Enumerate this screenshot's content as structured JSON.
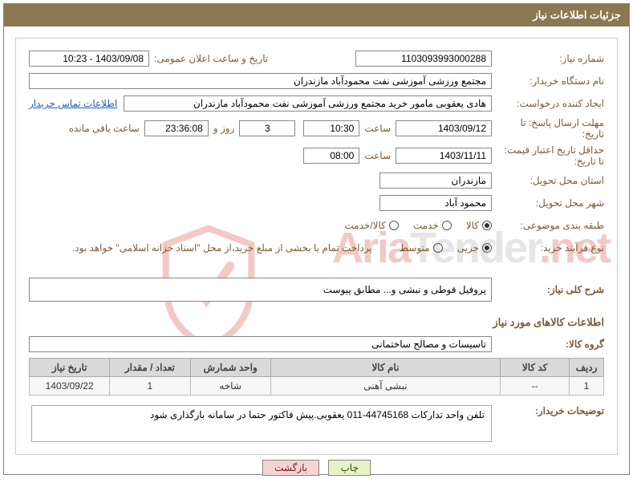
{
  "header_title": "جزئیات اطلاعات نیاز",
  "labels": {
    "need_no": "شماره نیاز:",
    "publish_dt": "تاریخ و ساعت اعلان عمومی:",
    "buyer_org": "نام دستگاه خریدار:",
    "requester": "ایجاد کننده درخواست:",
    "deadline": "مهلت ارسال پاسخ: تا تاریخ:",
    "validity": "حداقل تاریخ اعتبار قیمت: تا تاریخ:",
    "hour": "ساعت",
    "days_and": "روز و",
    "remaining": "ساعت باقی مانده",
    "delivery_prov": "استان محل تحویل:",
    "delivery_city": "شهر محل تحویل:",
    "subject_cat": "طبقه بندی موضوعی:",
    "process_type": "نوع فرآیند خرید:",
    "contact_link": "اطلاعات تماس خریدار",
    "process_note": "پرداخت تمام یا بخشی از مبلغ خرید،از محل \"اسناد خزانه اسلامی\" خواهد بود.",
    "main_desc": "شرح کلی نیاز:",
    "goods_info": "اطلاعات کالاهای مورد نیاز",
    "goods_group": "گروه کالا:",
    "buyer_notes": "توضیحات خریدار:"
  },
  "values": {
    "need_no": "1103093993000288",
    "publish_dt": "1403/09/08 - 10:23",
    "buyer_org": "مجتمع ورزشی آموزشی نفت محمودآباد مازندران",
    "requester": "هادی یعقوبی مامور خرید مجتمع ورزشی آموزشی نفت محمودآباد مازندران",
    "deadline_date": "1403/09/12",
    "deadline_time": "10:30",
    "remaining_days": "3",
    "remaining_hms": "23:36:08",
    "validity_date": "1403/11/11",
    "validity_time": "08:00",
    "province": "مازندران",
    "city": "محمود آباد",
    "main_desc": "پروفیل قوطی و نبشی و... مطابق پیوست",
    "goods_group": "تاسیسات و مصالح ساختمانی",
    "buyer_notes": "تلفن واحد تدارکات 44745168-011 یعقوبی.پیش فاکتور حتما در سامانه بارگذاری شود"
  },
  "subject_radios": [
    "کالا",
    "خدمت",
    "کالا/خدمت"
  ],
  "subject_selected": 0,
  "process_radios": [
    "جزیی",
    "متوسط"
  ],
  "process_selected": 0,
  "table": {
    "headers": [
      "ردیف",
      "کد کالا",
      "نام کالا",
      "واحد شمارش",
      "تعداد / مقدار",
      "تاریخ نیاز"
    ],
    "row": [
      "1",
      "--",
      "نبشی آهنی",
      "شاخه",
      "1",
      "1403/09/22"
    ]
  },
  "buttons": {
    "print": "چاپ",
    "back": "بازگشت"
  },
  "watermark": {
    "text_gray": "Tender",
    "text_red": "Aria",
    "text_net": ".net"
  }
}
